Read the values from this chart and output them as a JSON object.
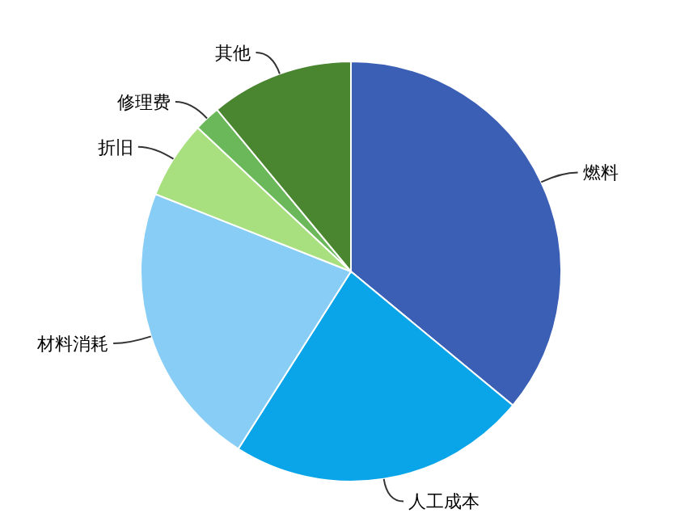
{
  "chart_data": {
    "type": "pie",
    "categories": [
      "燃料",
      "人工成本",
      "材料消耗",
      "折旧",
      "修理费",
      "其他"
    ],
    "values": [
      36,
      23,
      22,
      6,
      2,
      11
    ],
    "colors": [
      "#3a5fb5",
      "#0aa5e8",
      "#87cdf5",
      "#a8e07f",
      "#6ab85a",
      "#4a8530"
    ]
  }
}
